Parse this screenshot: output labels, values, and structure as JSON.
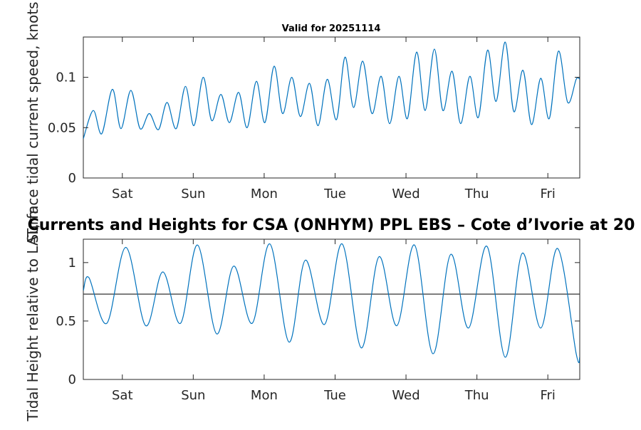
{
  "chart_data": [
    {
      "type": "line",
      "title": "Valid for 20251114",
      "ylabel": "Surface tidal current speed, knots",
      "xlabel": "",
      "x_unit": "days from start",
      "xlim": [
        0,
        7
      ],
      "ylim": [
        0,
        0.14
      ],
      "yticks": [
        0,
        0.05,
        0.1
      ],
      "ytick_labels": [
        "0",
        "0.05",
        "0.1"
      ],
      "xticks": [
        0.55,
        1.55,
        2.55,
        3.55,
        4.55,
        5.55,
        6.55
      ],
      "xtick_labels": [
        "Sat",
        "Sun",
        "Mon",
        "Tue",
        "Wed",
        "Thu",
        "Fri"
      ],
      "color": "#0072BD",
      "series": [
        {
          "name": "current speed",
          "x": [
            0.0,
            0.14,
            0.26,
            0.41,
            0.53,
            0.67,
            0.8,
            0.93,
            1.06,
            1.18,
            1.31,
            1.44,
            1.56,
            1.69,
            1.81,
            1.94,
            2.06,
            2.19,
            2.31,
            2.44,
            2.56,
            2.69,
            2.81,
            2.94,
            3.06,
            3.19,
            3.31,
            3.44,
            3.57,
            3.69,
            3.81,
            3.94,
            4.07,
            4.2,
            4.32,
            4.45,
            4.57,
            4.7,
            4.82,
            4.95,
            5.07,
            5.2,
            5.32,
            5.45,
            5.57,
            5.7,
            5.82,
            5.95,
            6.07,
            6.2,
            6.32,
            6.45,
            6.57,
            6.7,
            6.83,
            6.95,
            7.0
          ],
          "values": [
            0.039,
            0.067,
            0.044,
            0.088,
            0.049,
            0.087,
            0.049,
            0.064,
            0.048,
            0.075,
            0.049,
            0.091,
            0.052,
            0.1,
            0.057,
            0.083,
            0.055,
            0.085,
            0.05,
            0.096,
            0.055,
            0.111,
            0.064,
            0.1,
            0.061,
            0.094,
            0.052,
            0.098,
            0.058,
            0.12,
            0.07,
            0.116,
            0.064,
            0.101,
            0.054,
            0.101,
            0.059,
            0.125,
            0.067,
            0.128,
            0.067,
            0.106,
            0.054,
            0.101,
            0.06,
            0.127,
            0.076,
            0.135,
            0.066,
            0.107,
            0.053,
            0.099,
            0.059,
            0.126,
            0.075,
            0.098,
            0.098
          ]
        }
      ]
    },
    {
      "type": "line",
      "title": "Currents and Heights for CSA (ONHYM) PPL EBS  – Cote d’Ivorie at 20",
      "ylabel": "Tidal Height relative to LAT, m",
      "xlabel": "",
      "x_unit": "days from start",
      "xlim": [
        0,
        7
      ],
      "ylim": [
        0,
        1.2
      ],
      "yticks": [
        0,
        0.5,
        1
      ],
      "ytick_labels": [
        "0",
        "0.5",
        "1"
      ],
      "xticks": [
        0.55,
        1.55,
        2.55,
        3.55,
        4.55,
        5.55,
        6.55
      ],
      "xtick_labels": [
        "Sat",
        "Sun",
        "Mon",
        "Tue",
        "Wed",
        "Thu",
        "Fri"
      ],
      "color": "#0072BD",
      "reference_line": {
        "y": 0.73,
        "color": "#333333"
      },
      "series": [
        {
          "name": "tidal height",
          "x": [
            0.0,
            0.08,
            0.33,
            0.6,
            0.88,
            1.12,
            1.37,
            1.61,
            1.88,
            2.12,
            2.38,
            2.63,
            2.9,
            3.13,
            3.4,
            3.65,
            3.92,
            4.17,
            4.42,
            4.67,
            4.93,
            5.18,
            5.43,
            5.69,
            5.95,
            6.19,
            6.45,
            6.69,
            6.95,
            7.0
          ],
          "values": [
            0.76,
            0.87,
            0.48,
            1.13,
            0.46,
            0.92,
            0.48,
            1.15,
            0.39,
            0.97,
            0.48,
            1.16,
            0.32,
            1.02,
            0.47,
            1.16,
            0.27,
            1.05,
            0.46,
            1.15,
            0.22,
            1.07,
            0.44,
            1.14,
            0.19,
            1.08,
            0.44,
            1.12,
            0.22,
            0.19
          ]
        }
      ]
    }
  ]
}
